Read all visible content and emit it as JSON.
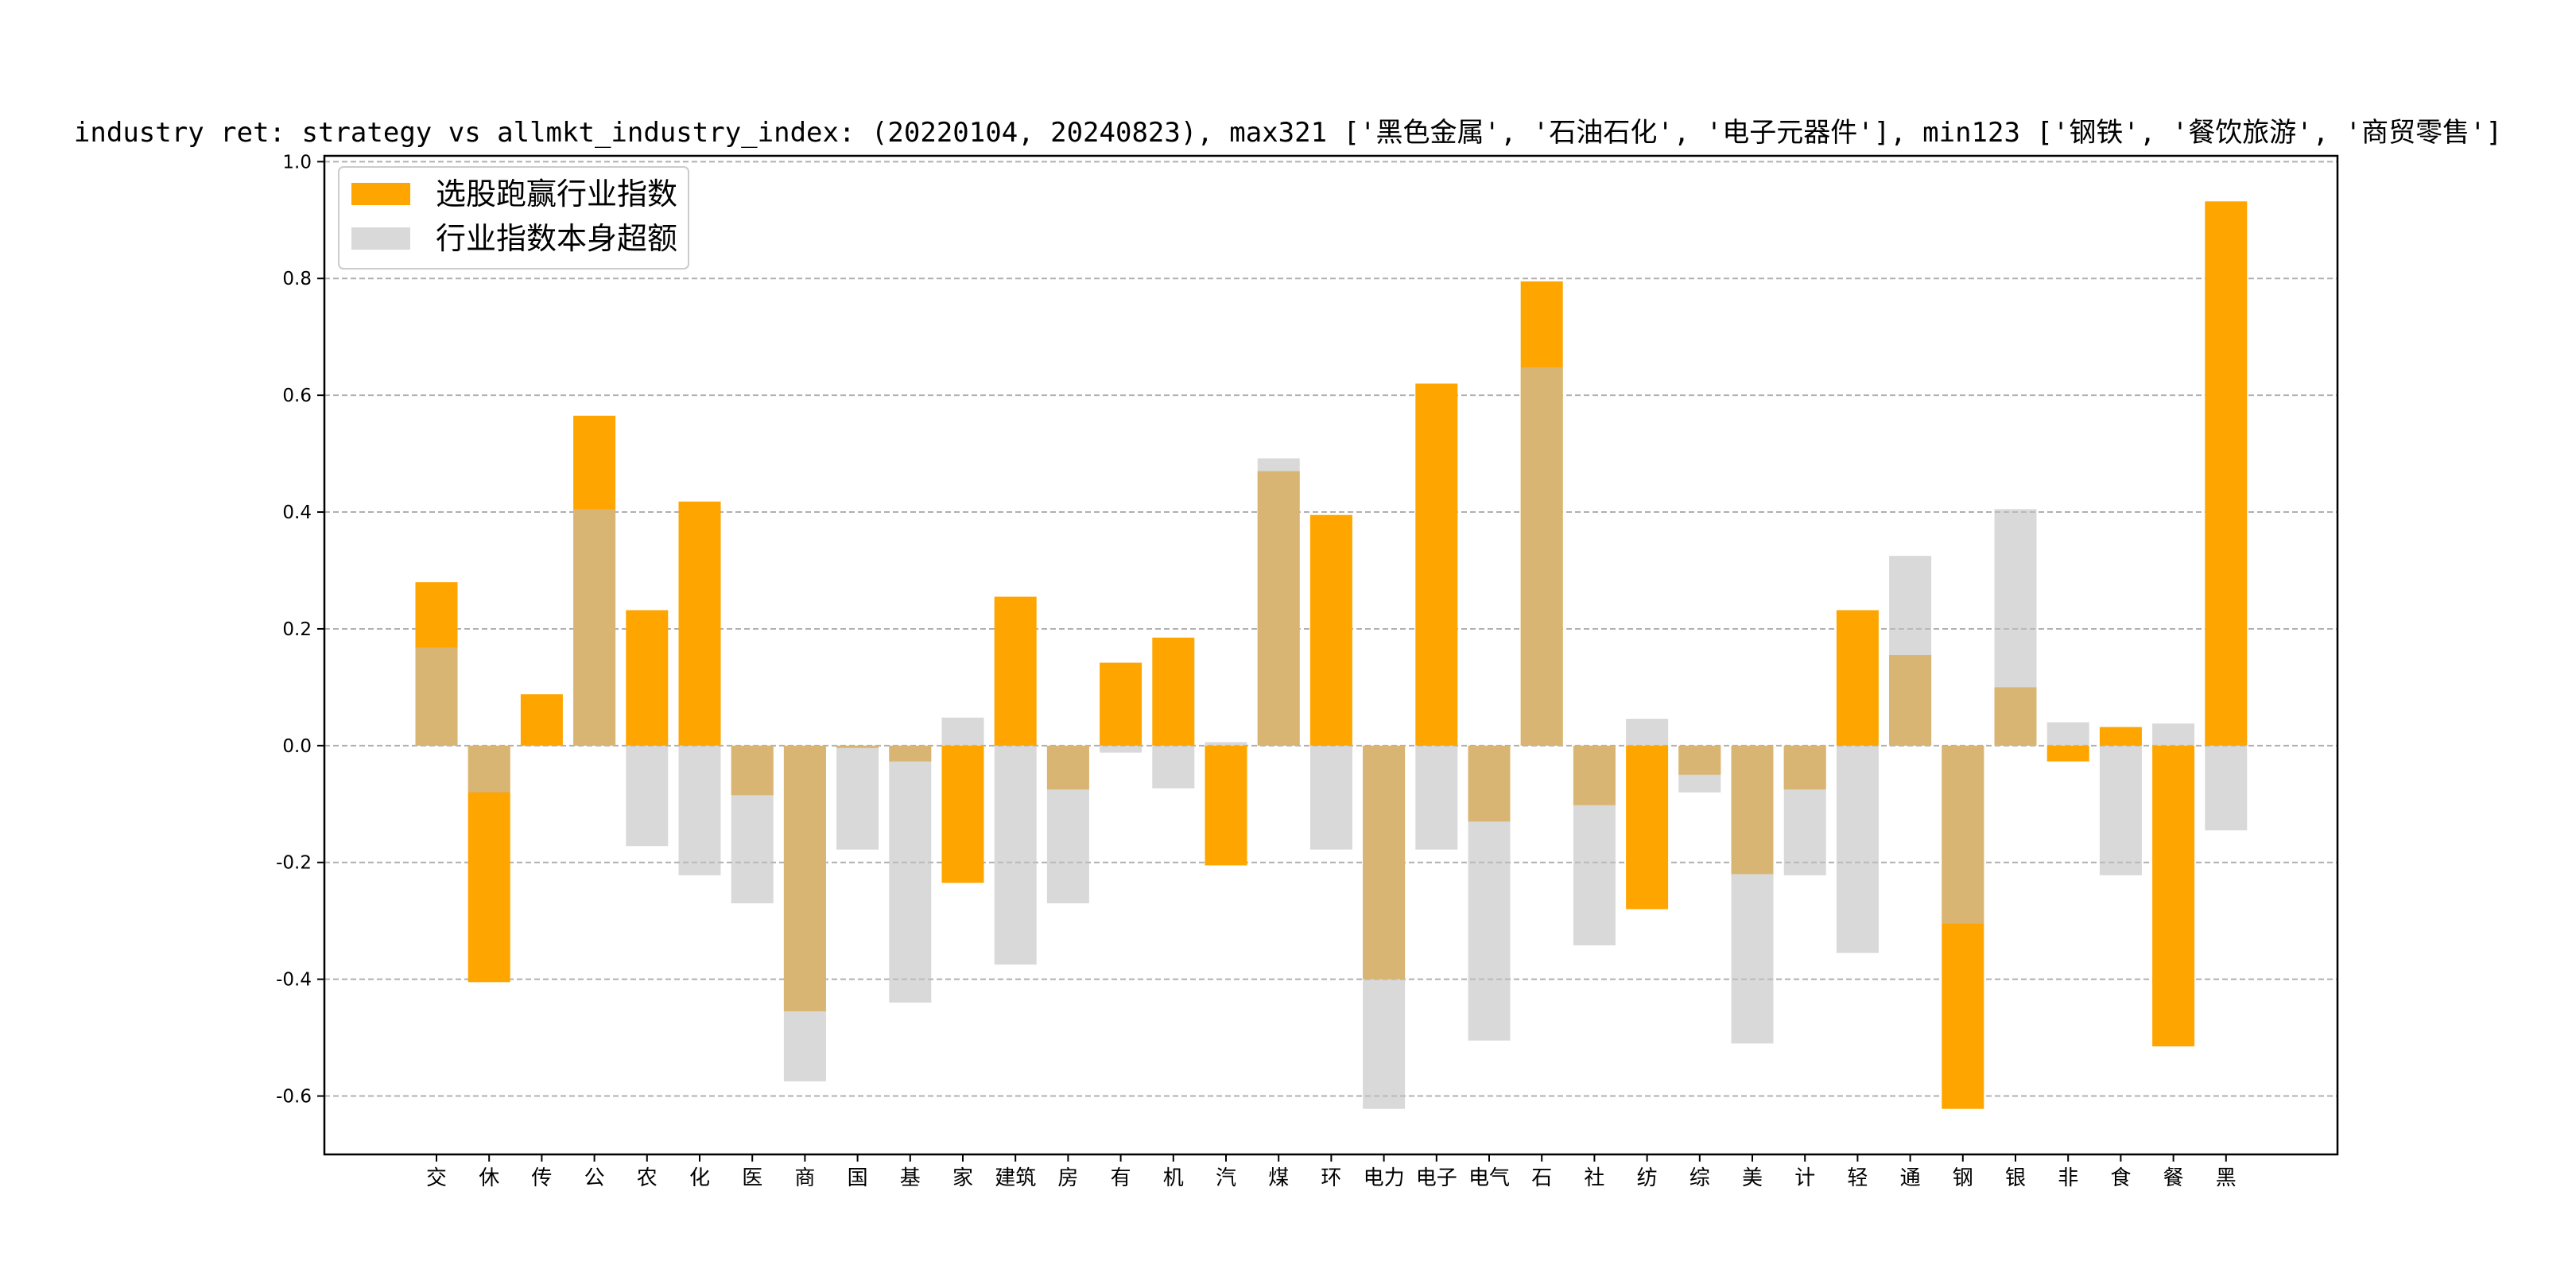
{
  "chart_data": {
    "type": "bar",
    "title": "industry ret: strategy vs allmkt_industry_index: (20220104, 20240823), max321 ['黑色金属', '石油石化', '电子元器件'], min123 ['钢铁', '餐饮旅游', '商贸零售']",
    "xlabel": "",
    "ylabel": "",
    "ylim": [
      -0.7,
      1.01
    ],
    "yticks": [
      1.0,
      0.8,
      0.6,
      0.4,
      0.2,
      0.0,
      -0.2,
      -0.4,
      -0.6
    ],
    "grid": "horizontal-dashed",
    "legend_position": "top-left",
    "categories": [
      "交",
      "休",
      "传",
      "公",
      "农",
      "化",
      "医",
      "商",
      "国",
      "基",
      "家",
      "建筑",
      "房",
      "有",
      "机",
      "汽",
      "煤",
      "环",
      "电力",
      "电子",
      "电气",
      "石",
      "社",
      "纺",
      "综",
      "美",
      "计",
      "轻",
      "通",
      "钢",
      "银",
      "非",
      "食",
      "餐",
      "黑"
    ],
    "series": [
      {
        "name": "选股跑赢行业指数",
        "color": "#FFA500",
        "values": [
          0.28,
          -0.405,
          0.088,
          0.565,
          0.232,
          0.418,
          -0.085,
          -0.455,
          -0.004,
          -0.027,
          -0.235,
          0.255,
          -0.075,
          0.142,
          0.185,
          -0.205,
          0.47,
          0.395,
          -0.4,
          0.62,
          -0.13,
          0.795,
          -0.102,
          -0.28,
          -0.05,
          -0.22,
          -0.075,
          0.232,
          0.155,
          -0.622,
          0.1,
          -0.027,
          0.032,
          -0.515,
          0.932
        ]
      },
      {
        "name": "行业指数本身超额",
        "color": "#C0C0C0",
        "values": [
          0.168,
          -0.08,
          0.0,
          0.405,
          -0.172,
          -0.222,
          -0.27,
          -0.575,
          -0.178,
          -0.44,
          0.048,
          -0.375,
          -0.27,
          -0.012,
          -0.073,
          0.006,
          0.492,
          -0.178,
          -0.622,
          -0.178,
          -0.505,
          0.648,
          -0.342,
          0.046,
          -0.08,
          -0.51,
          -0.222,
          -0.355,
          0.325,
          -0.305,
          0.405,
          0.04,
          -0.222,
          0.038,
          -0.145
        ]
      }
    ]
  }
}
